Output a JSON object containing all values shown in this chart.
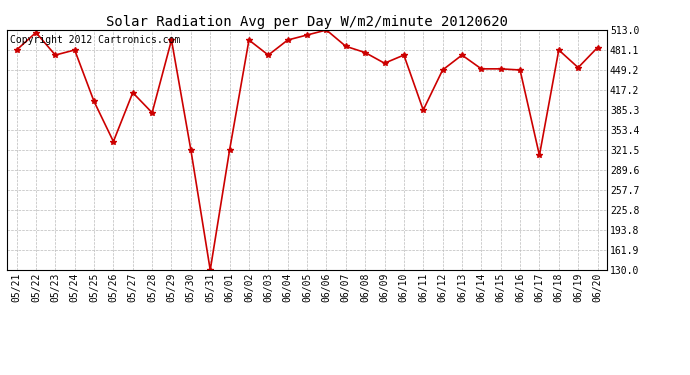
{
  "title": "Solar Radiation Avg per Day W/m2/minute 20120620",
  "copyright": "Copyright 2012 Cartronics.com",
  "labels": [
    "05/21",
    "05/22",
    "05/23",
    "05/24",
    "05/25",
    "05/26",
    "05/27",
    "05/28",
    "05/29",
    "05/30",
    "05/31",
    "06/01",
    "06/02",
    "06/03",
    "06/04",
    "06/05",
    "06/06",
    "06/07",
    "06/08",
    "06/09",
    "06/10",
    "06/11",
    "06/12",
    "06/13",
    "06/14",
    "06/15",
    "06/16",
    "06/17",
    "06/18",
    "06/19",
    "06/20"
  ],
  "values": [
    481.1,
    509.0,
    473.0,
    481.1,
    399.0,
    335.0,
    413.0,
    381.0,
    497.0,
    321.5,
    130.0,
    321.5,
    497.0,
    473.0,
    497.0,
    505.0,
    513.0,
    487.0,
    477.0,
    460.0,
    473.0,
    385.3,
    449.2,
    473.0,
    451.0,
    451.0,
    449.2,
    313.0,
    481.1,
    453.0,
    485.0
  ],
  "ylim": [
    130.0,
    513.0
  ],
  "yticks": [
    130.0,
    161.9,
    193.8,
    225.8,
    257.7,
    289.6,
    321.5,
    353.4,
    385.3,
    417.2,
    449.2,
    481.1,
    513.0
  ],
  "line_color": "#cc0000",
  "marker": "*",
  "marker_size": 4,
  "bg_color": "#ffffff",
  "grid_color": "#bbbbbb",
  "title_fontsize": 10,
  "copyright_fontsize": 7,
  "tick_fontsize": 7
}
